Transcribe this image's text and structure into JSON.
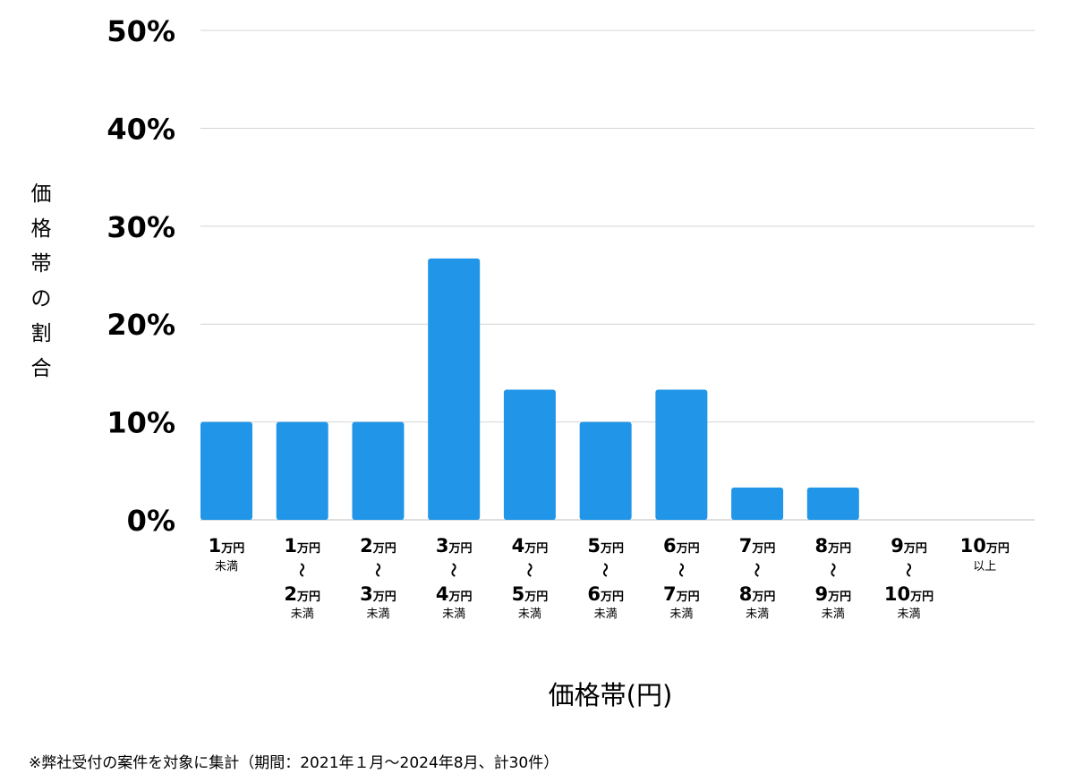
{
  "chart_data": {
    "type": "bar",
    "categories": [
      {
        "parts": [
          "1",
          "万円"
        ],
        "note": "未満"
      },
      {
        "parts": [
          "1",
          "万円"
        ],
        "to": [
          "2",
          "万円"
        ],
        "note": "未満"
      },
      {
        "parts": [
          "2",
          "万円"
        ],
        "to": [
          "3",
          "万円"
        ],
        "note": "未満"
      },
      {
        "parts": [
          "3",
          "万円"
        ],
        "to": [
          "4",
          "万円"
        ],
        "note": "未満"
      },
      {
        "parts": [
          "4",
          "万円"
        ],
        "to": [
          "5",
          "万円"
        ],
        "note": "未満"
      },
      {
        "parts": [
          "5",
          "万円"
        ],
        "to": [
          "6",
          "万円"
        ],
        "note": "未満"
      },
      {
        "parts": [
          "6",
          "万円"
        ],
        "to": [
          "7",
          "万円"
        ],
        "note": "未満"
      },
      {
        "parts": [
          "7",
          "万円"
        ],
        "to": [
          "8",
          "万円"
        ],
        "note": "未満"
      },
      {
        "parts": [
          "8",
          "万円"
        ],
        "to": [
          "9",
          "万円"
        ],
        "note": "未満"
      },
      {
        "parts": [
          "9",
          "万円"
        ],
        "to": [
          "10",
          "万円"
        ],
        "note": "未満"
      },
      {
        "parts": [
          "10",
          "万円"
        ],
        "note": "以上"
      }
    ],
    "values": [
      10.0,
      10.0,
      10.0,
      26.7,
      13.3,
      10.0,
      13.3,
      3.3,
      3.3,
      0,
      0
    ],
    "ylim": [
      0,
      50
    ],
    "yticks": [
      "0%",
      "10%",
      "20%",
      "30%",
      "40%",
      "50%"
    ],
    "range_mark": "〜",
    "ylabel": "価格帯の割合",
    "xlabel": "価格帯(円)",
    "grid": true,
    "bar_color": "#2196e9",
    "grid_color": "#d4d4d4"
  },
  "footnote": "※弊社受付の案件を対象に集計（期間：2021年１月〜2024年8月、計30件）"
}
